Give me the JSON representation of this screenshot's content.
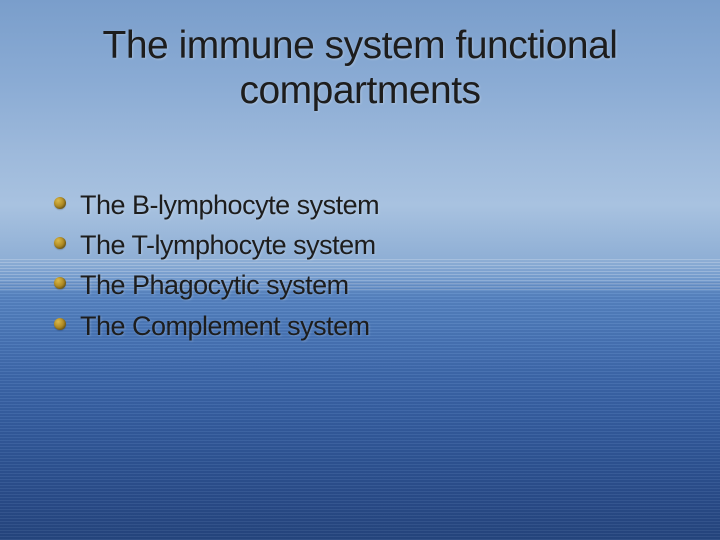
{
  "slide": {
    "title_line1": "The immune system functional",
    "title_line2": "compartments",
    "items": [
      "The B-lymphocyte system",
      "The T-lymphocyte system",
      "The Phagocytic system",
      "The Complement system"
    ]
  },
  "style": {
    "title_color": "#1d1d1d",
    "text_color": "#1d1d1d",
    "bullet_color_light": "#d9b84a",
    "bullet_color_dark": "#8a6a12",
    "bg_sky_top": "#7a9ecb",
    "bg_sky_mid": "#a8c2e0",
    "bg_sea_top": "#5785c3",
    "bg_sea_bottom": "#264780",
    "title_fontsize": 39,
    "item_fontsize": 27,
    "font_family": "Verdana"
  }
}
